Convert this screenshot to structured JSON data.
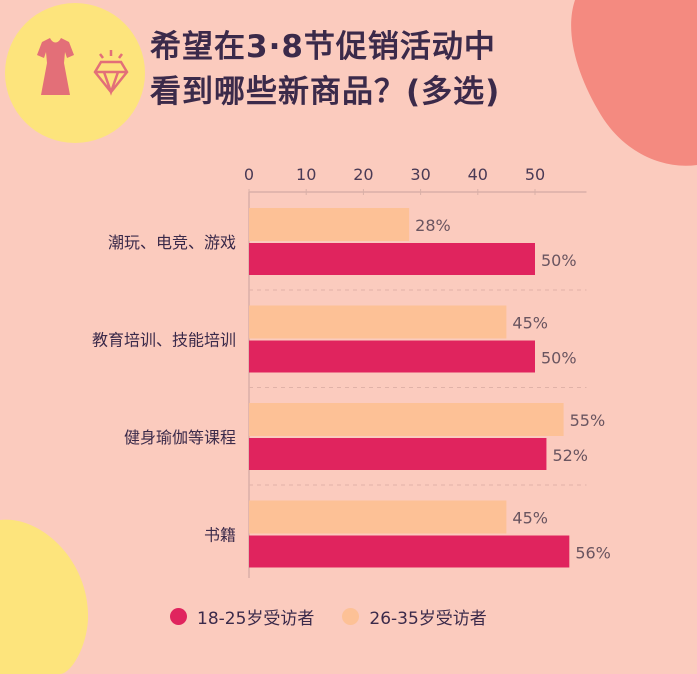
{
  "title_line1": "希望在3·8节促销活动中",
  "title_line2": "看到哪些新商品？(多选)",
  "colors": {
    "series1": "#e0245e",
    "series2": "#fdc196",
    "background": "#fbcbbe",
    "icon": "#e36f78",
    "circle": "#fde47c"
  },
  "icons": [
    "dress-icon",
    "diamond-icon"
  ],
  "chart_data": {
    "type": "bar",
    "orientation": "horizontal",
    "categories": [
      "潮玩、电竞、游戏",
      "教育培训、技能培训",
      "健身瑜伽等课程",
      "书籍"
    ],
    "series": [
      {
        "name": "26-35岁受访者",
        "values": [
          28,
          45,
          55,
          45
        ],
        "labels": [
          "28%",
          "45%",
          "55%",
          "45%"
        ]
      },
      {
        "name": "18-25岁受访者",
        "values": [
          50,
          50,
          52,
          56
        ],
        "labels": [
          "50%",
          "50%",
          "52%",
          "56%"
        ]
      }
    ],
    "xticks": [
      "0",
      "10",
      "20",
      "30",
      "40",
      "50"
    ],
    "xlim": [
      0,
      59
    ],
    "axis_position": "top",
    "legend_position": "bottom",
    "legend": [
      "18-25岁受访者",
      "26-35岁受访者"
    ]
  }
}
